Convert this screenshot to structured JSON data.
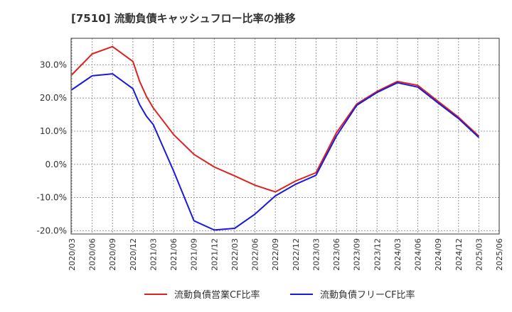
{
  "chart_data": {
    "type": "line",
    "title": "[7510]  流動負債キャッシュフロー比率の推移",
    "xlabel": "",
    "ylabel": "",
    "x": [
      "2020/03",
      "2020/06",
      "2020/09",
      "2020/12",
      "2021/01",
      "2021/02",
      "2021/03",
      "2021/06",
      "2021/09",
      "2021/12",
      "2022/03",
      "2022/06",
      "2022/09",
      "2022/12",
      "2023/03",
      "2023/06",
      "2023/09",
      "2023/12",
      "2024/03",
      "2024/06",
      "2024/09",
      "2024/12",
      "2025/03"
    ],
    "xticks": [
      "2020/03",
      "2020/06",
      "2020/09",
      "2020/12",
      "2021/03",
      "2021/06",
      "2021/09",
      "2021/12",
      "2022/03",
      "2022/06",
      "2022/09",
      "2022/12",
      "2023/03",
      "2023/06",
      "2023/09",
      "2023/12",
      "2024/03",
      "2024/06",
      "2024/09",
      "2024/12",
      "2025/03",
      "2025/06"
    ],
    "ylim": [
      -21,
      38
    ],
    "yticks": [
      -20,
      -10,
      0,
      10,
      20,
      30
    ],
    "ytick_labels": [
      "-20.0%",
      "-10.0%",
      "0.0%",
      "10.0%",
      "20.0%",
      "30.0%"
    ],
    "grid": true,
    "legend_position": "bottom",
    "series": [
      {
        "name": "流動負債営業CF比率",
        "color": "#dd2222",
        "points": [
          [
            "2020/03",
            27.0
          ],
          [
            "2020/06",
            33.3
          ],
          [
            "2020/09",
            35.5
          ],
          [
            "2020/12",
            31.0
          ],
          [
            "2021/01",
            25.0
          ],
          [
            "2021/02",
            20.5
          ],
          [
            "2021/03",
            17.0
          ],
          [
            "2021/06",
            9.0
          ],
          [
            "2021/09",
            3.0
          ],
          [
            "2021/12",
            -0.8
          ],
          [
            "2022/03",
            -3.5
          ],
          [
            "2022/06",
            -6.3
          ],
          [
            "2022/09",
            -8.3
          ],
          [
            "2022/12",
            -5.0
          ],
          [
            "2023/03",
            -2.5
          ],
          [
            "2023/06",
            9.5
          ],
          [
            "2023/09",
            18.2
          ],
          [
            "2023/12",
            22.0
          ],
          [
            "2024/03",
            25.0
          ],
          [
            "2024/06",
            23.8
          ],
          [
            "2024/09",
            19.0
          ],
          [
            "2024/12",
            14.2
          ],
          [
            "2025/03",
            8.5
          ]
        ]
      },
      {
        "name": "流動負債フリーCF比率",
        "color": "#1a1adb",
        "points": [
          [
            "2020/03",
            22.5
          ],
          [
            "2020/06",
            26.7
          ],
          [
            "2020/09",
            27.3
          ],
          [
            "2020/12",
            22.8
          ],
          [
            "2021/01",
            18.0
          ],
          [
            "2021/02",
            14.5
          ],
          [
            "2021/03",
            12.0
          ],
          [
            "2021/06",
            -2.0
          ],
          [
            "2021/09",
            -17.0
          ],
          [
            "2021/12",
            -19.8
          ],
          [
            "2022/03",
            -19.3
          ],
          [
            "2022/06",
            -15.0
          ],
          [
            "2022/09",
            -9.5
          ],
          [
            "2022/12",
            -6.0
          ],
          [
            "2023/03",
            -3.3
          ],
          [
            "2023/06",
            8.5
          ],
          [
            "2023/09",
            17.8
          ],
          [
            "2023/12",
            21.7
          ],
          [
            "2024/03",
            24.6
          ],
          [
            "2024/06",
            23.3
          ],
          [
            "2024/09",
            18.5
          ],
          [
            "2024/12",
            13.8
          ],
          [
            "2025/03",
            8.1
          ]
        ]
      }
    ]
  }
}
